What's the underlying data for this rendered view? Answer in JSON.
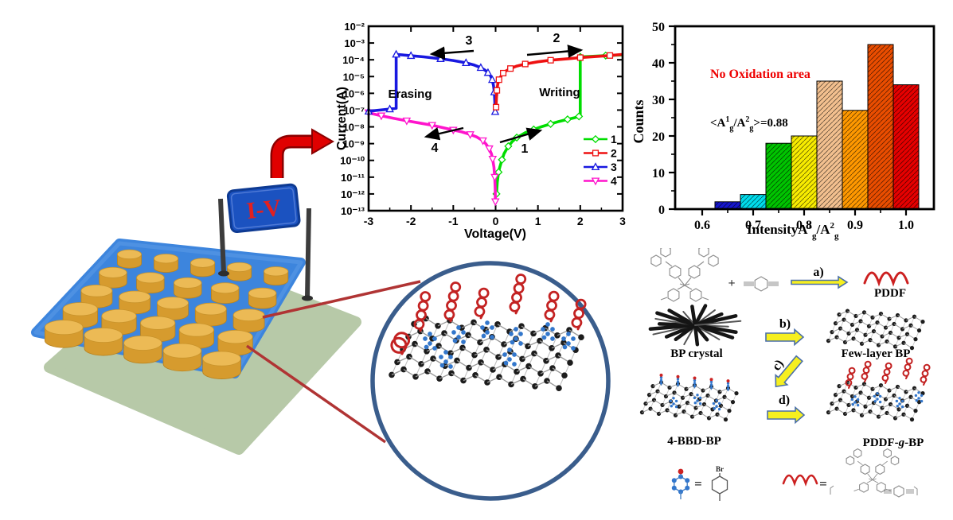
{
  "figure": {
    "device": {
      "sign_label": "I-V"
    }
  },
  "chart_data": [
    {
      "id": "iv-memory-curve",
      "type": "line",
      "xlabel": "Voltage(V)",
      "ylabel": "Current(A)",
      "xlim": [
        -3,
        3
      ],
      "x_ticks": [
        -3,
        -2,
        -1,
        0,
        1,
        2,
        3
      ],
      "yscale": "log",
      "ylim": [
        1e-13,
        0.01
      ],
      "y_tick_labels": [
        "10⁻²",
        "10⁻³",
        "10⁻⁴",
        "10⁻⁵",
        "10⁻⁶",
        "10⁻⁷",
        "10⁻⁸",
        "10⁻⁹",
        "10⁻¹⁰",
        "10⁻¹¹",
        "10⁻¹²",
        "10⁻¹³"
      ],
      "annotations": [
        {
          "text": "3"
        },
        {
          "text": "2"
        },
        {
          "text": "Erasing"
        },
        {
          "text": "Writing"
        },
        {
          "text": "4"
        },
        {
          "text": "1"
        }
      ],
      "legend_position": "lower right",
      "series": [
        {
          "name": "1",
          "color": "#00dd00",
          "marker": "diamond",
          "points": [
            [
              0.02,
              1e-12
            ],
            [
              0.04,
              5e-12
            ],
            [
              0.07,
              2e-11
            ],
            [
              0.1,
              4e-11
            ],
            [
              0.15,
              1.1e-10
            ],
            [
              0.2,
              2.5e-10
            ],
            [
              0.3,
              7e-10
            ],
            [
              0.4,
              1.4e-09
            ],
            [
              0.5,
              2.3e-09
            ],
            [
              0.7,
              4.5e-09
            ],
            [
              0.9,
              7e-09
            ],
            [
              1.1,
              1.05e-08
            ],
            [
              1.3,
              1.5e-08
            ],
            [
              1.5,
              2.1e-08
            ],
            [
              1.7,
              2.8e-08
            ],
            [
              1.85,
              3.4e-08
            ],
            [
              1.97,
              4.2e-08
            ],
            [
              2.0,
              4.5e-08
            ],
            [
              2.0,
              0.00015
            ],
            [
              2.3,
              0.000162
            ],
            [
              2.6,
              0.000178
            ],
            [
              3.0,
              0.000195
            ]
          ]
        },
        {
          "name": "2",
          "color": "#ee1111",
          "marker": "square",
          "points": [
            [
              0.01,
              1.5e-07
            ],
            [
              0.02,
              6e-07
            ],
            [
              0.03,
              1.5e-06
            ],
            [
              0.05,
              3.5e-06
            ],
            [
              0.08,
              6.5e-06
            ],
            [
              0.12,
              1e-05
            ],
            [
              0.18,
              1.6e-05
            ],
            [
              0.25,
              2.2e-05
            ],
            [
              0.35,
              3e-05
            ],
            [
              0.5,
              4.2e-05
            ],
            [
              0.7,
              5.6e-05
            ],
            [
              1.0,
              7.6e-05
            ],
            [
              1.3,
              9.4e-05
            ],
            [
              1.7,
              0.000115
            ],
            [
              2.0,
              0.000135
            ],
            [
              2.4,
              0.00016
            ],
            [
              2.7,
              0.00018
            ],
            [
              3.0,
              0.00021
            ]
          ]
        },
        {
          "name": "3",
          "color": "#1818e0",
          "marker": "triangle-up",
          "points": [
            [
              -0.01,
              8e-08
            ],
            [
              -0.02,
              4e-07
            ],
            [
              -0.03,
              1.2e-06
            ],
            [
              -0.05,
              3e-06
            ],
            [
              -0.08,
              6.5e-06
            ],
            [
              -0.12,
              1.1e-05
            ],
            [
              -0.18,
              1.7e-05
            ],
            [
              -0.25,
              2.4e-05
            ],
            [
              -0.35,
              3.4e-05
            ],
            [
              -0.5,
              4.8e-05
            ],
            [
              -0.7,
              6.6e-05
            ],
            [
              -1.0,
              9e-05
            ],
            [
              -1.3,
              0.000115
            ],
            [
              -1.7,
              0.00015
            ],
            [
              -2.0,
              0.000175
            ],
            [
              -2.2,
              0.000195
            ],
            [
              -2.35,
              0.00021
            ],
            [
              -2.35,
              1.3e-07
            ],
            [
              -2.5,
              1.15e-07
            ],
            [
              -2.75,
              1e-07
            ],
            [
              -3.0,
              8.5e-08
            ]
          ]
        },
        {
          "name": "4",
          "color": "#ff14cc",
          "marker": "triangle-down",
          "points": [
            [
              -0.005,
              3.5e-13
            ],
            [
              -0.01,
              2e-12
            ],
            [
              -0.02,
              1e-11
            ],
            [
              -0.04,
              4e-11
            ],
            [
              -0.07,
              1.2e-10
            ],
            [
              -0.1,
              2.5e-10
            ],
            [
              -0.15,
              5e-10
            ],
            [
              -0.22,
              9e-10
            ],
            [
              -0.3,
              1.5e-09
            ],
            [
              -0.45,
              2.5e-09
            ],
            [
              -0.6,
              3.5e-09
            ],
            [
              -0.8,
              5e-09
            ],
            [
              -1.0,
              6.5e-09
            ],
            [
              -1.25,
              9e-09
            ],
            [
              -1.5,
              1.25e-08
            ],
            [
              -1.8,
              1.7e-08
            ],
            [
              -2.1,
              2.3e-08
            ],
            [
              -2.4,
              3.2e-08
            ],
            [
              -2.7,
              4.6e-08
            ],
            [
              -2.9,
              6e-08
            ],
            [
              -3.0,
              7e-08
            ]
          ]
        }
      ]
    },
    {
      "id": "raman-intensity-histogram",
      "type": "bar",
      "xlabel_parts": [
        "Intensity",
        "A",
        "1",
        "g",
        "/A",
        "2",
        "g"
      ],
      "ylabel": "Counts",
      "ylim": [
        0,
        50
      ],
      "y_ticks": [
        0,
        10,
        20,
        30,
        40,
        50
      ],
      "x_ticks": [
        0.6,
        0.7,
        0.8,
        0.9,
        1.0
      ],
      "bin_start": 0.625,
      "bin_width": 0.05,
      "values": [
        2,
        4,
        18,
        20,
        35,
        27,
        45,
        34
      ],
      "bar_colors": [
        "#1616cc",
        "#00dcec",
        "#00c400",
        "#f8ec00",
        "#f3c08f",
        "#ff9800",
        "#ea4d00",
        "#e60000"
      ],
      "hatch": "///",
      "annotation_no_ox": "No Oxidation area",
      "annotation_no_ox_color": "#ee0000",
      "annotation_mean_parts": [
        "<A",
        "1",
        "g",
        "/A",
        "2",
        "g",
        ">=0.88"
      ]
    }
  ],
  "scheme": {
    "step_labels": [
      "a)",
      "b)",
      "c)",
      "d)"
    ],
    "plus": "+",
    "equals": "=",
    "labels": {
      "pddf": "PDDF",
      "bp_crystal": "BP crystal",
      "few_layer_bp": "Few-layer BP",
      "four_bbd_bp": "4-BBD-BP",
      "pddf_g_bp_parts": [
        "PDDF-",
        "g",
        "-BP"
      ],
      "br": "Br"
    }
  }
}
